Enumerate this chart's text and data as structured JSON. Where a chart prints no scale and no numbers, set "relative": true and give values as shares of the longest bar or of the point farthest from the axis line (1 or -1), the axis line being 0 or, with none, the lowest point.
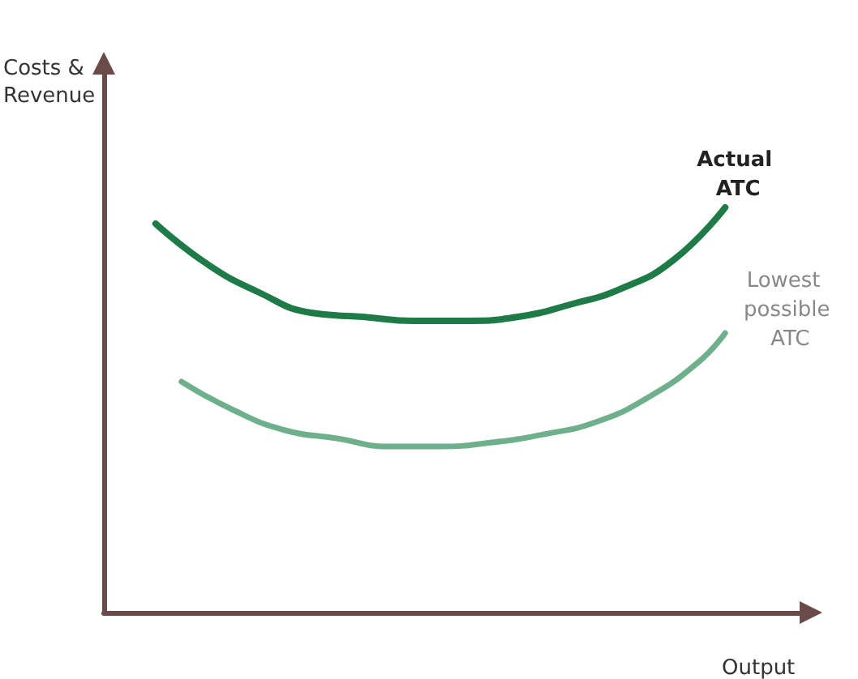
{
  "chart_data": {
    "type": "line",
    "xlabel": "Output",
    "ylabel": "Costs & Revenue",
    "relative": true,
    "grid": false,
    "marker": "none",
    "tick_labels": false,
    "categories": [
      null,
      null,
      null,
      null,
      null,
      null,
      null,
      null,
      null,
      null,
      null,
      null,
      null,
      null,
      null,
      null,
      null,
      null,
      null,
      null,
      null,
      null,
      null,
      null,
      null,
      null,
      null,
      null
    ],
    "series": [
      {
        "name": "Actual ATC",
        "color": "#1e7a46",
        "values": [
          null,
          null,
          0.96,
          null,
          0.86,
          null,
          0.79,
          null,
          0.74,
          null,
          0.73,
          null,
          0.72,
          null,
          0.72,
          null,
          0.73,
          null,
          0.76,
          null,
          0.8,
          null,
          0.87,
          null,
          1.0,
          null,
          null,
          null
        ]
      },
      {
        "name": "Lowest possible ATC",
        "color": "#6fb08c",
        "values": [
          null,
          null,
          null,
          0.57,
          null,
          0.5,
          null,
          0.45,
          null,
          0.43,
          null,
          0.41,
          null,
          0.41,
          null,
          0.42,
          null,
          0.44,
          null,
          0.47,
          null,
          0.53,
          null,
          0.62,
          0.69,
          null,
          null,
          null
        ]
      }
    ]
  }
}
